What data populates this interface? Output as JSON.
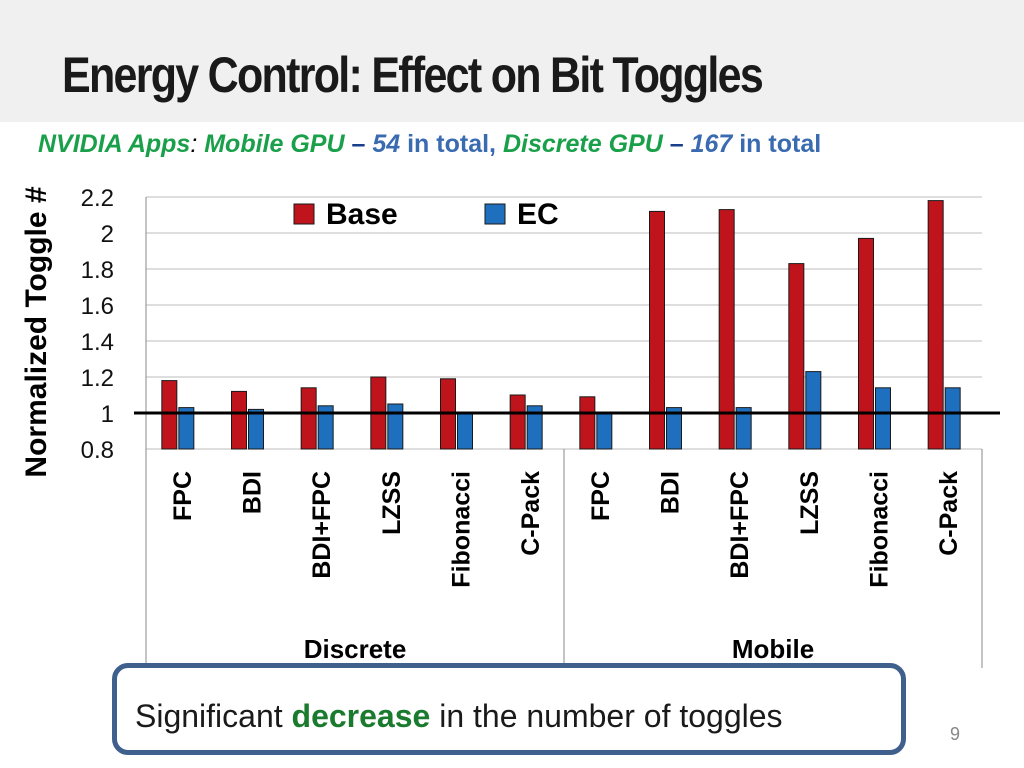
{
  "slide": {
    "title": "Energy Control: Effect on Bit Toggles",
    "subtitle": {
      "part1": "NVIDIA Apps",
      "part2": ":",
      "part3": "Mobile GPU",
      "part4": "–",
      "part5": "54",
      "part6": "in total,",
      "part7": "Discrete GPU",
      "part8": "–",
      "part9": "167",
      "part10": "in total"
    },
    "callout": {
      "before": "Significant ",
      "highlight": "decrease",
      "after": " in the number of toggles"
    },
    "page_number": "9"
  },
  "chart_data": {
    "type": "bar",
    "ylabel": "Normalized Toggle #",
    "ylim": [
      0.8,
      2.2
    ],
    "yticks": [
      "0.8",
      "1",
      "1.2",
      "1.4",
      "1.6",
      "1.8",
      "2",
      "2.2"
    ],
    "reference_line": 1,
    "categories": [
      "FPC",
      "BDI",
      "BDI+FPC",
      "LZSS",
      "Fibonacci",
      "C-Pack",
      "FPC",
      "BDI",
      "BDI+FPC",
      "LZSS",
      "Fibonacci",
      "C-Pack"
    ],
    "groups": [
      {
        "label": "Discrete",
        "count": 6
      },
      {
        "label": "Mobile",
        "count": 6
      }
    ],
    "series": [
      {
        "name": "Base",
        "color": "#c0141c",
        "values": [
          1.18,
          1.12,
          1.14,
          1.2,
          1.19,
          1.1,
          1.09,
          2.12,
          2.13,
          1.83,
          1.97,
          2.18
        ]
      },
      {
        "name": "EC",
        "color": "#1f6fbf",
        "values": [
          1.03,
          1.02,
          1.04,
          1.05,
          1.0,
          1.04,
          1.0,
          1.03,
          1.03,
          1.23,
          1.14,
          1.14
        ]
      }
    ],
    "legend_position": "top"
  }
}
